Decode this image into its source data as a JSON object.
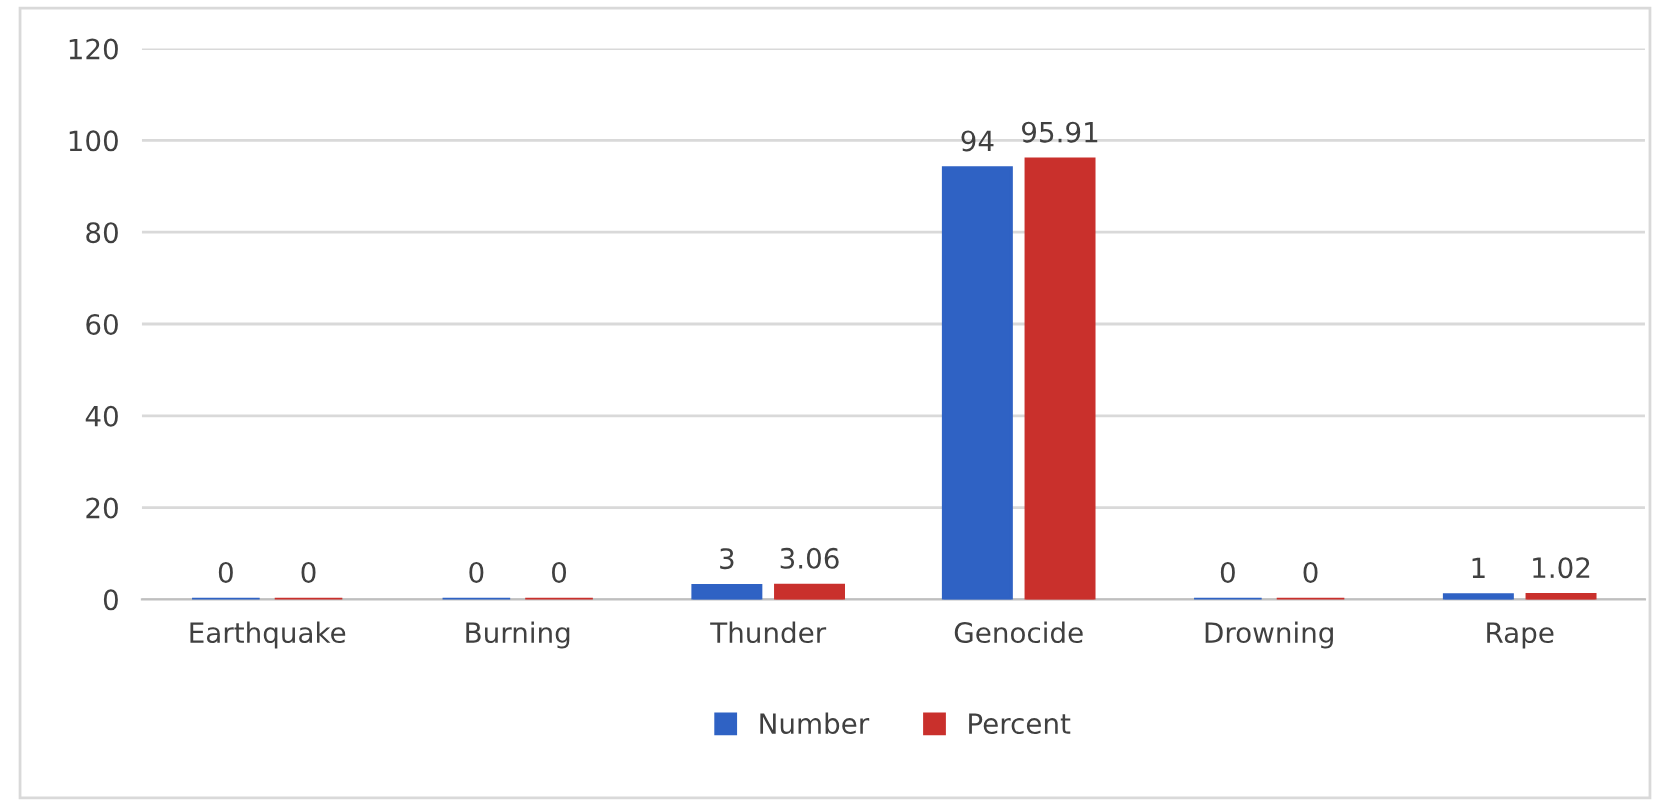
{
  "chart_data": {
    "type": "bar",
    "categories": [
      "Earthquake",
      "Burning",
      "Thunder",
      "Genocide",
      "Drowning",
      "Rape"
    ],
    "series": [
      {
        "name": "Number",
        "color": "#2f62c4",
        "values": [
          0,
          0,
          3,
          94,
          0,
          1
        ]
      },
      {
        "name": "Percent",
        "color": "#c9302c",
        "values": [
          0,
          0,
          3.06,
          95.91,
          0,
          1.02
        ]
      }
    ],
    "ylim": [
      0,
      120
    ],
    "yticks": [
      0,
      20,
      40,
      60,
      80,
      100,
      120
    ],
    "grid": "y",
    "legend": "bottom",
    "data_labels": true
  }
}
